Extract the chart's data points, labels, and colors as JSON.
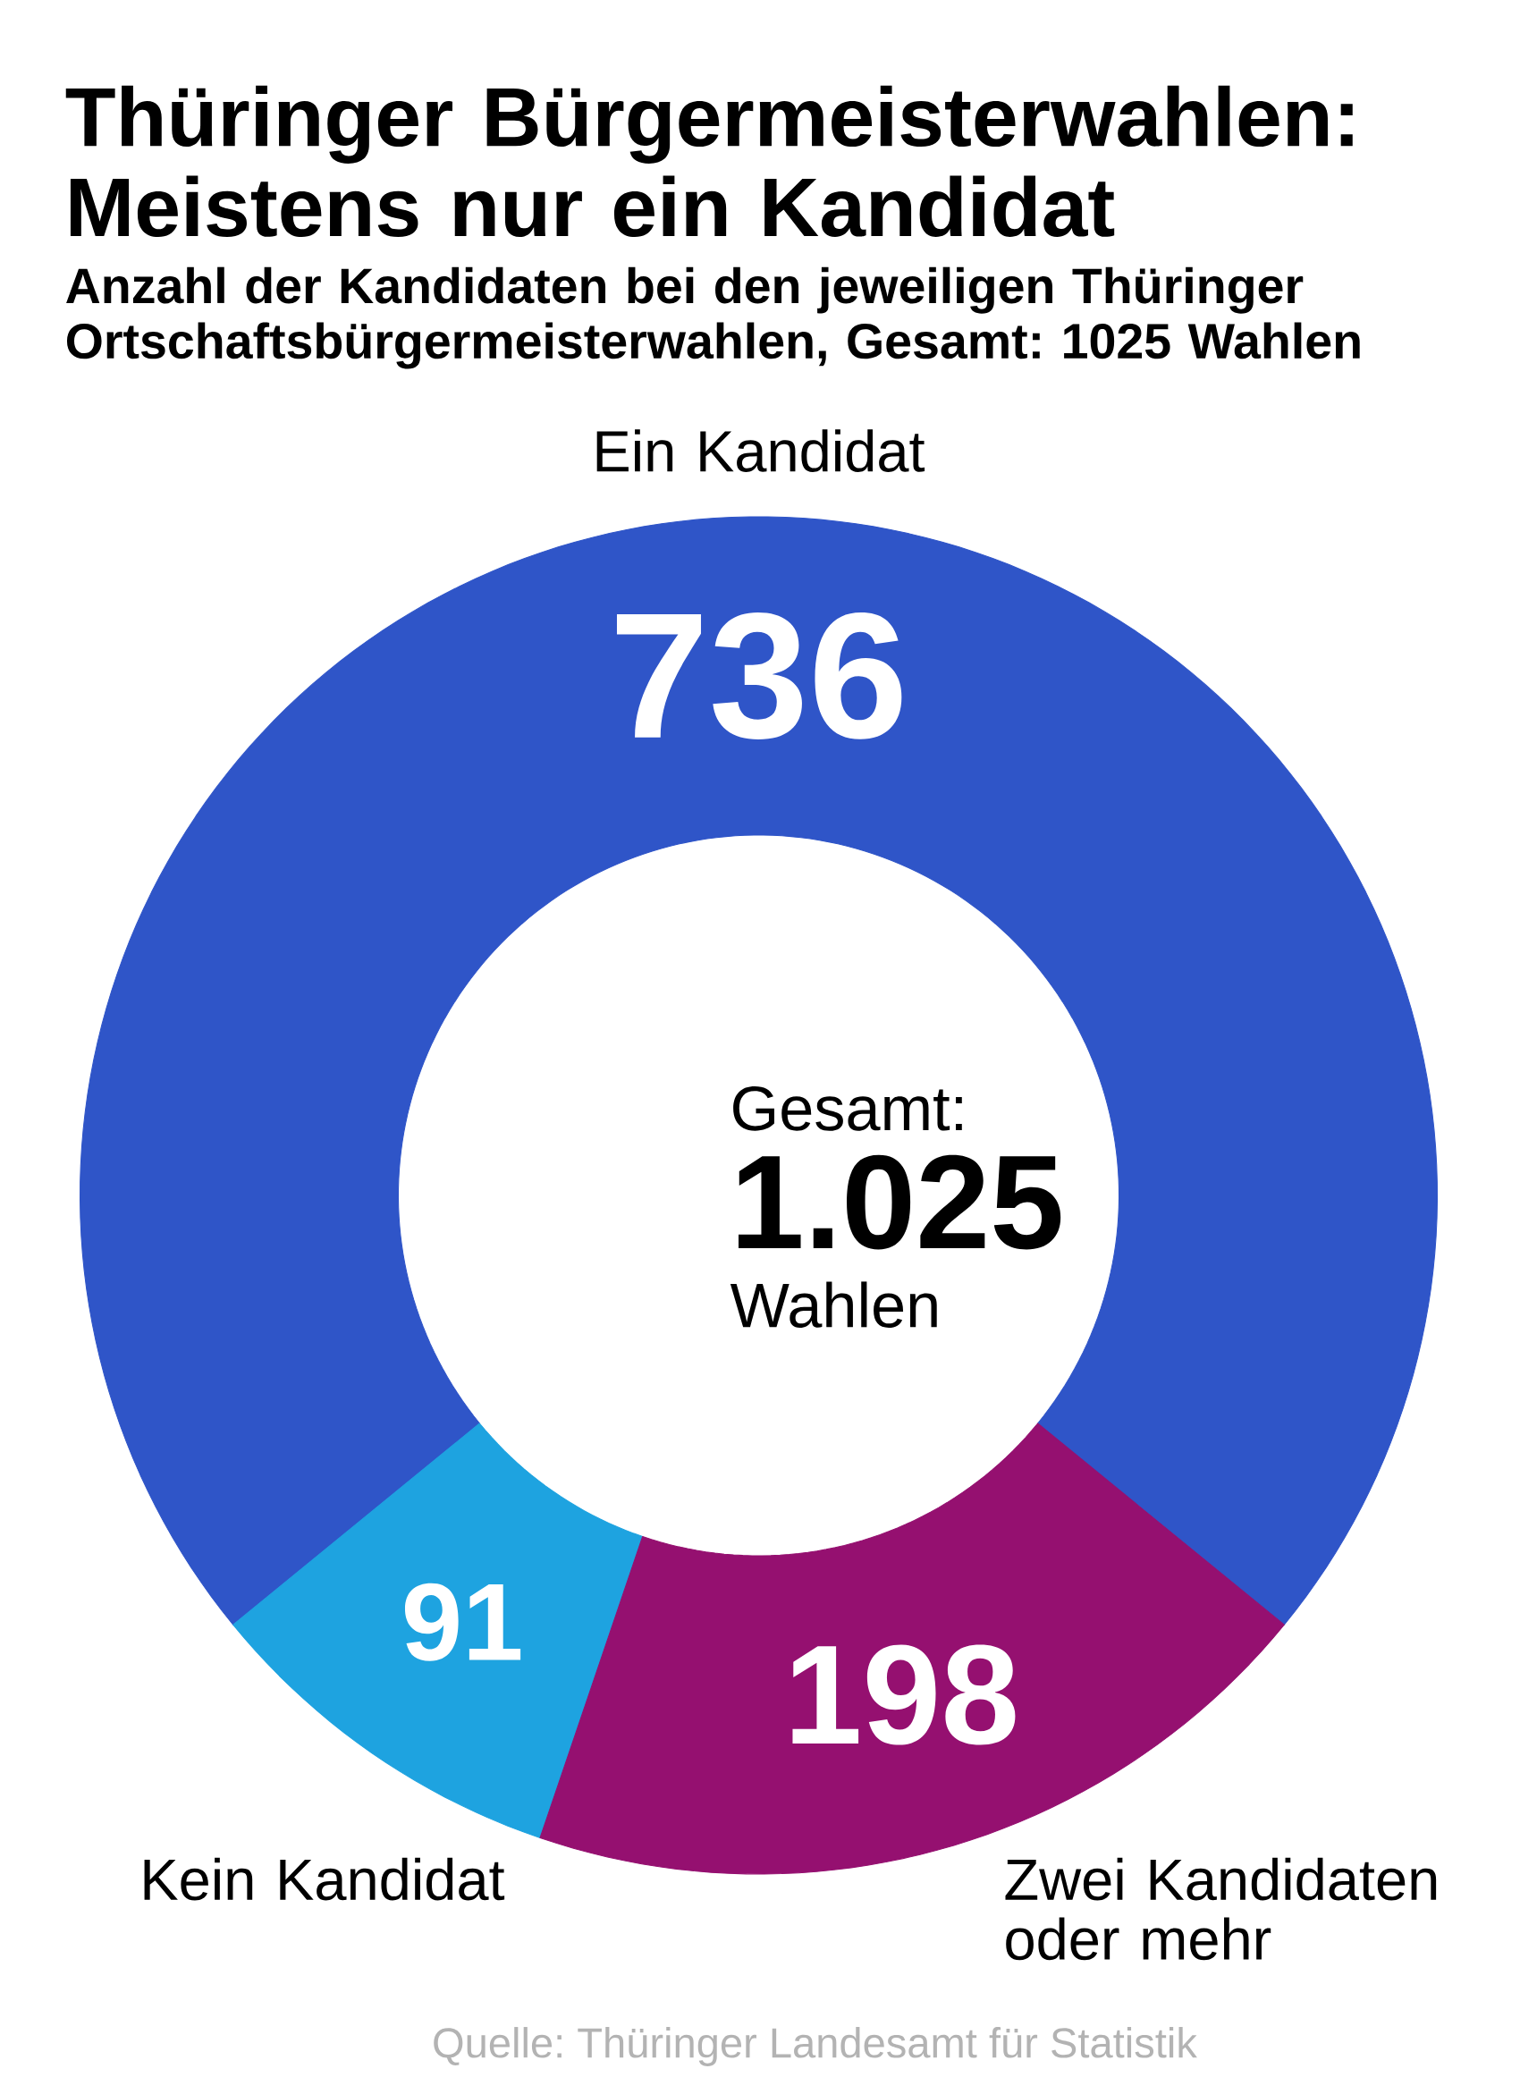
{
  "chart_data": {
    "type": "donut",
    "title": "Thüringer Bürgermeisterwahlen: Meistens nur ein Kandidat",
    "subtitle": "Anzahl der Kandidaten bei den jeweiligen Thüringer Ortschaftsbürgermeisterwahlen, Gesamt: 1025 Wahlen",
    "categories": [
      "Ein Kandidat",
      "Kein Kandidat",
      "Zwei Kandidaten oder mehr"
    ],
    "values": [
      736,
      91,
      198
    ],
    "colors": [
      "#2f55c8",
      "#1ea3e0",
      "#951070"
    ],
    "data_labels": true,
    "annotations": [
      "Gesamt:",
      "1.025",
      "Wahlen",
      "Quelle: Thüringer Landesamt für Statistik"
    ]
  }
}
